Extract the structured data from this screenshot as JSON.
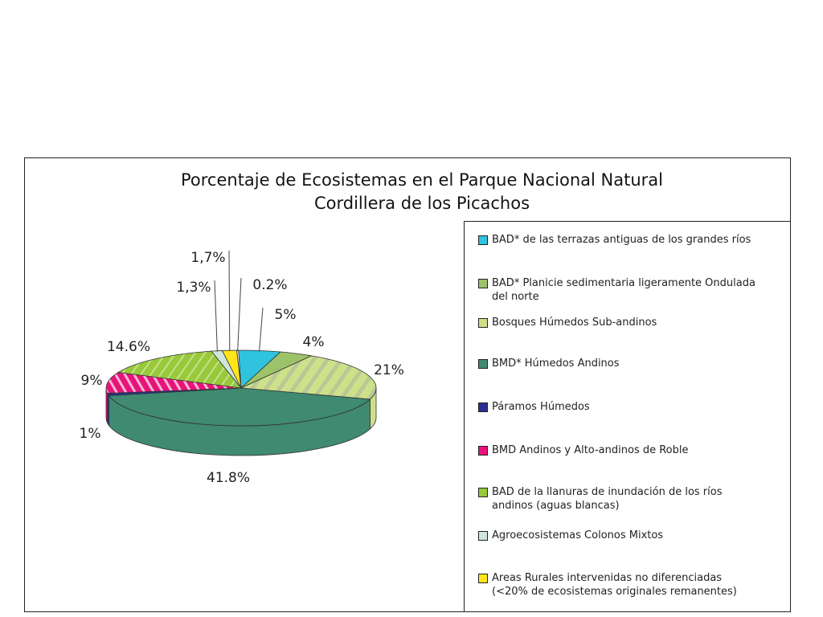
{
  "chart_data": {
    "type": "pie",
    "title": "Porcentaje de Ecosistemas en el Parque Nacional Natural",
    "subtitle": "Cordillera de los Picachos",
    "slices": [
      {
        "label": "BAD* de las terrazas antiguas de los grandes ríos",
        "value": 5,
        "display": "5%",
        "color": "#2fc3dd"
      },
      {
        "label": "BAD* Planicie sedimentaria ligeramente Ondulada del norte",
        "value": 4,
        "display": "4%",
        "color": "#9cc36a"
      },
      {
        "label": "Bosques Húmedos Sub-andinos",
        "value": 21,
        "display": "21%",
        "color": "#cfe08a"
      },
      {
        "label": "BMD*  Húmedos Andinos",
        "value": 41.8,
        "display": "41.8%",
        "color": "#3f8a70"
      },
      {
        "label": "Páramos Húmedos",
        "value": 1,
        "display": "1%",
        "color": "#2b2f8f"
      },
      {
        "label": "BMD Andinos y Alto-andinos de Roble",
        "value": 9,
        "display": "9%",
        "color": "#e8137a"
      },
      {
        "label": "BAD de la llanuras de inundación de los ríos andinos (aguas blancas)",
        "value": 14.6,
        "display": "14.6%",
        "color": "#97c93a"
      },
      {
        "label": "Agroecosistemas Colonos Mixtos",
        "value": 1.3,
        "display": "1,3%",
        "color": "#cfe6dc"
      },
      {
        "label": "Areas Rurales intervenidas no diferenciadas (<20% de ecosistemas originales remanentes)",
        "value": 1.7,
        "display": "1,7%",
        "color": "#ffe51a"
      },
      {
        "label": "",
        "value": 0.2,
        "display": "0.2%",
        "color": "#ffffff"
      }
    ],
    "legend_position": "right",
    "style": "3d-exploded-pie"
  },
  "legend": [
    {
      "line1": "BAD* de las terrazas antiguas de los grandes ríos",
      "line2": "",
      "color": "#2fc3dd"
    },
    {
      "line1": "BAD* Planicie sedimentaria ligeramente Ondulada",
      "line2": "del norte",
      "color": "#9cc36a"
    },
    {
      "line1": "Bosques Húmedos Sub-andinos",
      "line2": "",
      "color": "#cfe08a"
    },
    {
      "line1": "BMD*  Húmedos Andinos",
      "line2": "",
      "color": "#3f8a70"
    },
    {
      "line1": "Páramos Húmedos",
      "line2": "",
      "color": "#2b2f8f"
    },
    {
      "line1": "BMD Andinos y Alto-andinos de Roble",
      "line2": "",
      "color": "#e8137a"
    },
    {
      "line1": "BAD de la llanuras de inundación de los ríos",
      "line2": "andinos (aguas blancas)",
      "color": "#97c93a"
    },
    {
      "line1": "Agroecosistemas Colonos Mixtos",
      "line2": "",
      "color": "#cfe6dc"
    },
    {
      "line1": "Areas Rurales intervenidas no diferenciadas",
      "line2": "(<20% de ecosistemas originales remanentes)",
      "color": "#ffe51a"
    }
  ]
}
